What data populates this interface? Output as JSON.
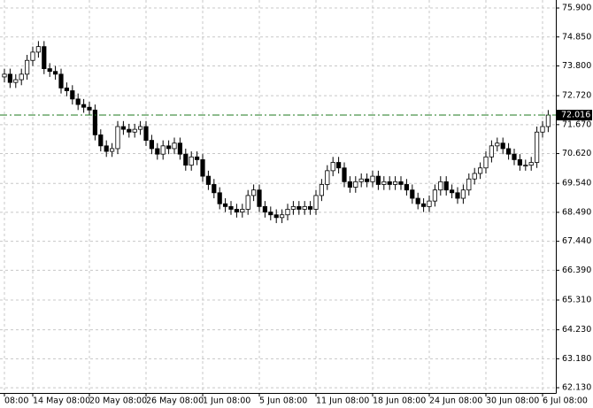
{
  "chart_data": {
    "type": "candlestick",
    "categories": [
      "08:00",
      null,
      null,
      null,
      null,
      "14 May 08:00",
      null,
      null,
      null,
      null,
      null,
      null,
      null,
      null,
      null,
      "20 May 08:00",
      null,
      null,
      null,
      null,
      null,
      null,
      null,
      null,
      null,
      "26 May 08:00",
      null,
      null,
      null,
      null,
      null,
      null,
      null,
      null,
      null,
      "1 Jun 08:00",
      null,
      null,
      null,
      null,
      null,
      null,
      null,
      null,
      null,
      "5 Jun 08:00",
      null,
      null,
      null,
      null,
      null,
      null,
      null,
      null,
      null,
      "11 Jun 08:00",
      null,
      null,
      null,
      null,
      null,
      null,
      null,
      null,
      null,
      "18 Jun 08:00",
      null,
      null,
      null,
      null,
      null,
      null,
      null,
      null,
      null,
      "24 Jun 08:00",
      null,
      null,
      null,
      null,
      null,
      null,
      null,
      null,
      null,
      "30 Jun 08:00",
      null,
      null,
      null,
      null,
      null,
      null,
      null,
      null,
      null,
      "6 Jul 08:00",
      null
    ],
    "open": [
      73.4,
      73.5,
      73.2,
      73.3,
      73.5,
      74.0,
      74.3,
      74.5,
      73.7,
      73.6,
      73.5,
      73.0,
      72.9,
      72.6,
      72.4,
      72.3,
      72.2,
      71.3,
      70.9,
      70.7,
      70.8,
      71.6,
      71.5,
      71.4,
      71.5,
      71.6,
      71.1,
      70.8,
      70.6,
      70.9,
      70.8,
      71.0,
      70.6,
      70.2,
      70.5,
      70.4,
      69.8,
      69.5,
      69.2,
      68.8,
      68.7,
      68.6,
      68.5,
      68.6,
      69.1,
      69.3,
      68.7,
      68.5,
      68.4,
      68.3,
      68.4,
      68.6,
      68.7,
      68.6,
      68.7,
      68.6,
      69.1,
      69.5,
      70.0,
      70.3,
      70.1,
      69.6,
      69.4,
      69.6,
      69.7,
      69.6,
      69.8,
      69.5,
      69.6,
      69.5,
      69.6,
      69.5,
      69.3,
      69.0,
      68.8,
      68.7,
      68.9,
      69.3,
      69.6,
      69.3,
      69.2,
      69.0,
      69.3,
      69.7,
      69.9,
      70.1,
      70.5,
      70.9,
      71.0,
      70.8,
      70.6,
      70.4,
      70.2,
      70.2,
      70.3,
      71.4,
      71.6
    ],
    "high": [
      73.7,
      73.7,
      73.5,
      73.7,
      74.2,
      74.5,
      74.7,
      74.7,
      73.9,
      73.8,
      73.7,
      73.2,
      73.1,
      72.8,
      72.6,
      72.5,
      72.4,
      71.5,
      71.1,
      71.0,
      71.8,
      71.8,
      71.7,
      71.7,
      71.8,
      71.8,
      71.3,
      71.0,
      71.1,
      71.1,
      71.2,
      71.2,
      70.8,
      70.7,
      70.7,
      70.6,
      70.0,
      69.7,
      69.4,
      69.0,
      68.9,
      68.8,
      68.8,
      69.3,
      69.5,
      69.5,
      68.9,
      68.7,
      68.6,
      68.6,
      68.8,
      68.9,
      68.9,
      68.9,
      68.9,
      69.3,
      69.7,
      70.2,
      70.5,
      70.5,
      70.3,
      69.8,
      69.8,
      69.9,
      69.9,
      70.0,
      70.0,
      69.8,
      69.8,
      69.8,
      69.8,
      69.7,
      69.5,
      69.2,
      69.0,
      69.1,
      69.5,
      69.8,
      69.8,
      69.5,
      69.4,
      69.5,
      69.9,
      70.1,
      70.3,
      70.7,
      71.1,
      71.2,
      71.2,
      71.0,
      70.8,
      70.6,
      70.4,
      70.5,
      71.6,
      71.8,
      72.2
    ],
    "low": [
      73.2,
      73.0,
      73.0,
      73.1,
      73.3,
      73.8,
      74.1,
      73.5,
      73.4,
      73.3,
      72.8,
      72.7,
      72.4,
      72.2,
      72.1,
      72.0,
      71.1,
      70.7,
      70.5,
      70.5,
      70.6,
      71.3,
      71.2,
      71.2,
      71.3,
      70.9,
      70.6,
      70.4,
      70.4,
      70.6,
      70.6,
      70.4,
      70.0,
      70.0,
      70.2,
      69.6,
      69.3,
      69.0,
      68.6,
      68.5,
      68.4,
      68.3,
      68.3,
      68.4,
      68.9,
      68.5,
      68.3,
      68.2,
      68.1,
      68.1,
      68.2,
      68.4,
      68.4,
      68.4,
      68.4,
      68.4,
      68.9,
      69.3,
      69.8,
      69.9,
      69.4,
      69.2,
      69.2,
      69.4,
      69.4,
      69.4,
      69.3,
      69.3,
      69.3,
      69.3,
      69.3,
      69.1,
      68.8,
      68.6,
      68.5,
      68.5,
      68.7,
      69.1,
      69.1,
      69.0,
      68.8,
      68.8,
      69.1,
      69.5,
      69.7,
      69.9,
      70.3,
      70.7,
      70.6,
      70.4,
      70.2,
      70.0,
      70.0,
      70.0,
      70.1,
      71.2,
      71.4
    ],
    "close": [
      73.5,
      73.2,
      73.3,
      73.5,
      74.0,
      74.3,
      74.5,
      73.7,
      73.6,
      73.5,
      73.0,
      72.9,
      72.6,
      72.4,
      72.3,
      72.2,
      71.3,
      70.9,
      70.7,
      70.8,
      71.6,
      71.5,
      71.4,
      71.5,
      71.6,
      71.1,
      70.8,
      70.6,
      70.9,
      70.8,
      71.0,
      70.6,
      70.2,
      70.5,
      70.4,
      69.8,
      69.5,
      69.2,
      68.8,
      68.7,
      68.6,
      68.5,
      68.6,
      69.1,
      69.3,
      68.7,
      68.5,
      68.4,
      68.3,
      68.4,
      68.6,
      68.7,
      68.6,
      68.7,
      68.6,
      69.1,
      69.5,
      70.0,
      70.3,
      70.1,
      69.6,
      69.4,
      69.6,
      69.7,
      69.6,
      69.8,
      69.5,
      69.6,
      69.5,
      69.6,
      69.5,
      69.3,
      69.0,
      68.8,
      68.7,
      68.9,
      69.3,
      69.6,
      69.3,
      69.2,
      69.0,
      69.3,
      69.7,
      69.9,
      70.1,
      70.5,
      70.9,
      71.0,
      70.8,
      70.6,
      70.4,
      70.2,
      70.2,
      70.3,
      71.4,
      71.6,
      72.016
    ],
    "up_color": "#ffffff",
    "down_color": "#000000",
    "last_price": 72.016,
    "last_price_color": "#1f7a1f",
    "ylim": [
      61.94,
      76.19
    ],
    "yticks": [
      {
        "value": 75.9,
        "label": "75.900"
      },
      {
        "value": 74.85,
        "label": "74.850"
      },
      {
        "value": 73.8,
        "label": "73.800"
      },
      {
        "value": 72.72,
        "label": "72.720"
      },
      {
        "value": 71.67,
        "label": "71.670"
      },
      {
        "value": 70.62,
        "label": "70.620"
      },
      {
        "value": 69.54,
        "label": "69.540"
      },
      {
        "value": 68.49,
        "label": "68.490"
      },
      {
        "value": 67.44,
        "label": "67.440"
      },
      {
        "value": 66.39,
        "label": "66.390"
      },
      {
        "value": 65.31,
        "label": "65.310"
      },
      {
        "value": 64.23,
        "label": "64.230"
      },
      {
        "value": 63.18,
        "label": "63.180"
      },
      {
        "value": 62.13,
        "label": "62.130"
      }
    ],
    "grid": true
  }
}
